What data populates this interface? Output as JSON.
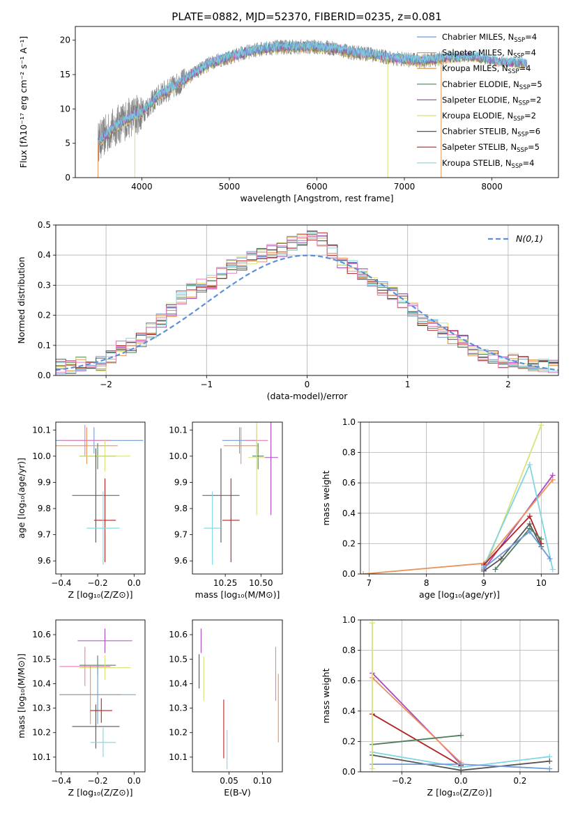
{
  "figure": {
    "title": "PLATE=0882, MJD=52370, FIBERID=0235, z=0.081"
  },
  "colors": {
    "chabrier_miles": "#6e9ad7",
    "salpeter_miles": "#e8945a",
    "kroupa_miles": "#d98a3a",
    "chabrier_elodie": "#4f7d5a",
    "salpeter_elodie": "#a84ac0",
    "kroupa_elodie": "#d8e27a",
    "chabrier_stelib": "#555555",
    "salpeter_stelib": "#b22222",
    "kroupa_stelib": "#7fd6e0",
    "data_spectrum": "#808080",
    "normal_curve": "#5b8fd9",
    "pink": "#e37fb6"
  },
  "chart_data": [
    {
      "id": "spectrum",
      "type": "line",
      "xlabel": "wavelength [Angstrom, rest frame]",
      "ylabel": "Flux [fλ10⁻¹⁷ erg cm⁻² s⁻¹ A⁻¹]",
      "xlim": [
        3240,
        8760
      ],
      "ylim": [
        0,
        22
      ],
      "xticks": [
        4000,
        5000,
        6000,
        7000,
        8000
      ],
      "yticks": [
        0,
        5,
        10,
        15,
        20
      ],
      "legend_position": "top-right",
      "legend": [
        {
          "label": "Chabrier MILES, N",
          "sub": "SSP",
          "tail": "=4",
          "color_key": "chabrier_miles"
        },
        {
          "label": "Salpeter MILES, N",
          "sub": "SSP",
          "tail": "=4",
          "color_key": "salpeter_miles"
        },
        {
          "label": "Kroupa MILES, N",
          "sub": "SSP",
          "tail": "=4",
          "color_key": "kroupa_miles"
        },
        {
          "label": "Chabrier ELODIE, N",
          "sub": "SSP",
          "tail": "=5",
          "color_key": "chabrier_elodie"
        },
        {
          "label": "Salpeter ELODIE, N",
          "sub": "SSP",
          "tail": "=2",
          "color_key": "salpeter_elodie"
        },
        {
          "label": "Kroupa ELODIE, N",
          "sub": "SSP",
          "tail": "=2",
          "color_key": "kroupa_elodie"
        },
        {
          "label": "Chabrier STELIB, N",
          "sub": "SSP",
          "tail": "=6",
          "color_key": "chabrier_stelib"
        },
        {
          "label": "Salpeter STELIB, N",
          "sub": "SSP",
          "tail": "=5",
          "color_key": "salpeter_stelib"
        },
        {
          "label": "Kroupa STELIB, N",
          "sub": "SSP",
          "tail": "=4",
          "color_key": "kroupa_stelib"
        }
      ],
      "model_envelope": {
        "wavelength": [
          3500,
          3700,
          3900,
          4000,
          4200,
          4400,
          4600,
          4800,
          5000,
          5200,
          5400,
          5600,
          5800,
          6000,
          6200,
          6400,
          6600,
          6800,
          7000,
          7200,
          7400,
          7600,
          7800,
          8000,
          8200,
          8400
        ],
        "flux": [
          5.2,
          7.5,
          9.0,
          9.5,
          12.0,
          13.5,
          15.2,
          16.8,
          17.5,
          18.3,
          18.8,
          19.0,
          19.0,
          19.0,
          18.8,
          18.2,
          18.0,
          17.5,
          17.2,
          17.0,
          17.3,
          17.5,
          17.6,
          17.0,
          16.8,
          16.5
        ]
      },
      "data_range": [
        3500,
        7450
      ]
    },
    {
      "id": "residuals",
      "type": "bar",
      "xlabel": "(data-model)/error",
      "ylabel": "Normed distribution",
      "xlim": [
        -2.5,
        2.5
      ],
      "ylim": [
        0,
        0.5
      ],
      "xticks": [
        -2,
        -1,
        0,
        1,
        2
      ],
      "yticks": [
        0.0,
        0.1,
        0.2,
        0.3,
        0.4,
        0.5
      ],
      "legend_position": "top-right",
      "legend_label": "N(0,1)",
      "bin_width": 0.1,
      "bin_start": -2.5,
      "histogram": [
        0.03,
        0.03,
        0.04,
        0.04,
        0.04,
        0.06,
        0.09,
        0.1,
        0.12,
        0.15,
        0.18,
        0.22,
        0.26,
        0.28,
        0.3,
        0.31,
        0.34,
        0.36,
        0.37,
        0.39,
        0.4,
        0.41,
        0.42,
        0.44,
        0.45,
        0.46,
        0.45,
        0.41,
        0.38,
        0.36,
        0.34,
        0.31,
        0.29,
        0.27,
        0.25,
        0.22,
        0.19,
        0.17,
        0.15,
        0.13,
        0.11,
        0.09,
        0.07,
        0.06,
        0.05,
        0.05,
        0.04,
        0.03,
        0.03,
        0.03
      ]
    },
    {
      "id": "z_age",
      "type": "scatter",
      "xlabel": "Z [log₁₀(Z/Z⊙)]",
      "ylabel": "age  [log₁₀(age/yr)]",
      "xlim": [
        -0.43,
        0.06
      ],
      "ylim": [
        9.55,
        10.13
      ],
      "xticks": [
        -0.4,
        -0.2,
        0.0
      ],
      "yticks": [
        9.6,
        9.7,
        9.8,
        9.9,
        10.0,
        10.1
      ],
      "points": [
        {
          "x": -0.22,
          "y": 10.06,
          "xerr": 0.27,
          "yerr": 0.05,
          "color_key": "chabrier_miles"
        },
        {
          "x": -0.26,
          "y": 10.04,
          "xerr": 0.17,
          "yerr": 0.07,
          "color_key": "salpeter_miles"
        },
        {
          "x": -0.27,
          "y": 10.06,
          "xerr": 0.14,
          "yerr": 0.06,
          "color_key": "pink"
        },
        {
          "x": -0.2,
          "y": 10.0,
          "xerr": 0.1,
          "yerr": 0.05,
          "color_key": "chabrier_elodie"
        },
        {
          "x": -0.16,
          "y": 10.0,
          "xerr": 0.14,
          "yerr": 0.06,
          "color_key": "kroupa_elodie"
        },
        {
          "x": -0.21,
          "y": 9.85,
          "xerr": 0.13,
          "yerr": 0.18,
          "color_key": "chabrier_stelib"
        },
        {
          "x": -0.16,
          "y": 9.755,
          "xerr": 0.06,
          "yerr": 0.16,
          "color_key": "salpeter_stelib"
        },
        {
          "x": -0.17,
          "y": 9.725,
          "xerr": 0.09,
          "yerr": 0.14,
          "color_key": "kroupa_stelib"
        }
      ]
    },
    {
      "id": "mass_age",
      "type": "scatter",
      "xlabel": "mass [log₁₀(M/M⊙)]",
      "ylabel": "",
      "xlim": [
        10.02,
        10.65
      ],
      "ylim": [
        9.55,
        10.13
      ],
      "xticks": [
        10.25,
        10.5
      ],
      "yticks": [
        9.6,
        9.7,
        9.8,
        9.9,
        10.0,
        10.1
      ],
      "points": [
        {
          "x": 10.35,
          "y": 10.06,
          "xerr": 0.12,
          "yerr": 0.05,
          "color_key": "chabrier_miles"
        },
        {
          "x": 10.36,
          "y": 10.04,
          "xerr": 0.12,
          "yerr": 0.07,
          "color_key": "salpeter_miles"
        },
        {
          "x": 10.47,
          "y": 10.06,
          "xerr": 0.08,
          "yerr": 0.06,
          "color_key": "pink"
        },
        {
          "x": 10.48,
          "y": 10.0,
          "xerr": 0.04,
          "yerr": 0.05,
          "color_key": "chabrier_elodie"
        },
        {
          "x": 10.57,
          "y": 9.995,
          "xerr": 0.05,
          "yerr": 0.22,
          "color_key": "salpeter_elodie"
        },
        {
          "x": 10.47,
          "y": 9.995,
          "xerr": 0.06,
          "yerr": 0.22,
          "color_key": "kroupa_elodie"
        },
        {
          "x": 10.22,
          "y": 9.85,
          "xerr": 0.13,
          "yerr": 0.18,
          "color_key": "chabrier_stelib"
        },
        {
          "x": 10.29,
          "y": 9.755,
          "xerr": 0.06,
          "yerr": 0.16,
          "color_key": "salpeter_stelib"
        },
        {
          "x": 10.16,
          "y": 9.725,
          "xerr": 0.06,
          "yerr": 0.14,
          "color_key": "kroupa_stelib"
        }
      ]
    },
    {
      "id": "age_weight",
      "type": "line",
      "xlabel": "age  [log₁₀(age/yr)]",
      "ylabel": "mass weight",
      "xlim": [
        6.85,
        10.3
      ],
      "ylim": [
        0,
        1.0
      ],
      "xticks": [
        7,
        8,
        9,
        10
      ],
      "yticks": [
        0.0,
        0.2,
        0.4,
        0.6,
        0.8,
        1.0
      ],
      "series": [
        {
          "color_key": "kroupa_elodie",
          "x": [
            9.0,
            10.0
          ],
          "y": [
            0.02,
            0.98
          ]
        },
        {
          "color_key": "salpeter_elodie",
          "x": [
            9.0,
            10.2
          ],
          "y": [
            0.03,
            0.65
          ]
        },
        {
          "color_key": "salpeter_miles",
          "x": [
            6.9,
            9.0,
            10.2
          ],
          "y": [
            0.0,
            0.07,
            0.62
          ]
        },
        {
          "color_key": "kroupa_stelib",
          "x": [
            9.0,
            9.8,
            10.2
          ],
          "y": [
            0.05,
            0.72,
            0.03
          ]
        },
        {
          "color_key": "salpeter_stelib",
          "x": [
            9.0,
            9.8,
            10.0
          ],
          "y": [
            0.06,
            0.38,
            0.2
          ]
        },
        {
          "color_key": "chabrier_stelib",
          "x": [
            9.0,
            9.3,
            9.8,
            10.0
          ],
          "y": [
            0.02,
            0.1,
            0.33,
            0.18
          ]
        },
        {
          "color_key": "chabrier_elodie",
          "x": [
            9.2,
            9.8,
            10.0
          ],
          "y": [
            0.03,
            0.3,
            0.23
          ]
        },
        {
          "color_key": "chabrier_miles",
          "x": [
            9.0,
            9.8,
            10.15
          ],
          "y": [
            0.04,
            0.28,
            0.1
          ]
        }
      ]
    },
    {
      "id": "z_mass",
      "type": "scatter",
      "xlabel": "Z [log₁₀(Z/Z⊙)]",
      "ylabel": "mass [log₁₀(M/M⊙)]",
      "xlim": [
        -0.43,
        0.06
      ],
      "ylim": [
        10.04,
        10.66
      ],
      "xticks": [
        -0.4,
        -0.2,
        0.0
      ],
      "yticks": [
        10.1,
        10.2,
        10.3,
        10.4,
        10.5,
        10.6
      ],
      "points": [
        {
          "x": -0.16,
          "y": 10.575,
          "xerr": 0.15,
          "yerr": 0.05,
          "color_key": "salpeter_elodie"
        },
        {
          "x": -0.27,
          "y": 10.47,
          "xerr": 0.14,
          "yerr": 0.08,
          "color_key": "pink"
        },
        {
          "x": -0.2,
          "y": 10.475,
          "xerr": 0.1,
          "yerr": 0.04,
          "color_key": "chabrier_elodie"
        },
        {
          "x": -0.16,
          "y": 10.465,
          "xerr": 0.14,
          "yerr": 0.05,
          "color_key": "kroupa_elodie"
        },
        {
          "x": -0.24,
          "y": 10.355,
          "xerr": 0.17,
          "yerr": 0.12,
          "color_key": "salpeter_miles"
        },
        {
          "x": -0.2,
          "y": 10.355,
          "xerr": 0.21,
          "yerr": 0.12,
          "color_key": "chabrier_miles"
        },
        {
          "x": -0.18,
          "y": 10.29,
          "xerr": 0.06,
          "yerr": 0.05,
          "color_key": "salpeter_stelib"
        },
        {
          "x": -0.21,
          "y": 10.225,
          "xerr": 0.13,
          "yerr": 0.09,
          "color_key": "chabrier_stelib"
        },
        {
          "x": -0.17,
          "y": 10.16,
          "xerr": 0.07,
          "yerr": 0.06,
          "color_key": "kroupa_stelib"
        }
      ]
    },
    {
      "id": "ebv_mass",
      "type": "scatter",
      "xlabel": "E(B-V)",
      "ylabel": "",
      "xlim": [
        -0.005,
        0.13
      ],
      "ylim": [
        10.04,
        10.66
      ],
      "xticks": [
        0.05,
        0.1
      ],
      "yticks": [
        10.1,
        10.2,
        10.3,
        10.4,
        10.5,
        10.6
      ],
      "points": [
        {
          "x": 0.008,
          "y": 10.575,
          "yerr": 0.05,
          "color_key": "salpeter_elodie"
        },
        {
          "x": 0.005,
          "y": 10.45,
          "yerr": 0.07,
          "color_key": "chabrier_stelib"
        },
        {
          "x": 0.012,
          "y": 10.42,
          "yerr": 0.09,
          "color_key": "kroupa_elodie"
        },
        {
          "x": 0.042,
          "y": 10.215,
          "yerr": 0.12,
          "color_key": "salpeter_stelib"
        },
        {
          "x": 0.047,
          "y": 10.13,
          "yerr": 0.08,
          "color_key": "kroupa_stelib"
        },
        {
          "x": 0.12,
          "y": 10.44,
          "yerr": 0.11,
          "color_key": "pink"
        },
        {
          "x": 0.124,
          "y": 10.3,
          "yerr": 0.14,
          "color_key": "salpeter_miles"
        }
      ]
    },
    {
      "id": "z_weight",
      "type": "line",
      "xlabel": "Z [log₁₀(Z/Z⊙)]",
      "ylabel": "mass weight",
      "xlim": [
        -0.34,
        0.33
      ],
      "ylim": [
        0,
        1.0
      ],
      "xticks": [
        -0.2,
        0.0,
        0.2
      ],
      "yticks": [
        0.0,
        0.2,
        0.4,
        0.6,
        0.8,
        1.0
      ],
      "series": [
        {
          "color_key": "salpeter_elodie",
          "x": [
            -0.3,
            0.0
          ],
          "y": [
            0.65,
            0.05
          ]
        },
        {
          "color_key": "salpeter_miles",
          "x": [
            -0.3,
            0.0
          ],
          "y": [
            0.62,
            0.06
          ]
        },
        {
          "color_key": "salpeter_stelib",
          "x": [
            -0.3,
            0.0
          ],
          "y": [
            0.38,
            0.04
          ]
        },
        {
          "color_key": "chabrier_elodie",
          "x": [
            -0.3,
            0.0
          ],
          "y": [
            0.18,
            0.24
          ]
        },
        {
          "color_key": "kroupa_stelib",
          "x": [
            -0.3,
            0.0,
            0.3
          ],
          "y": [
            0.13,
            0.03,
            0.1
          ]
        },
        {
          "color_key": "chabrier_stelib",
          "x": [
            -0.3,
            0.0,
            0.3
          ],
          "y": [
            0.11,
            0.01,
            0.07
          ]
        },
        {
          "color_key": "chabrier_miles",
          "x": [
            -0.3,
            0.0,
            0.3
          ],
          "y": [
            0.05,
            0.05,
            0.02
          ]
        },
        {
          "color_key": "kroupa_elodie",
          "x": [
            -0.3,
            -0.3
          ],
          "y": [
            0.02,
            0.98
          ]
        }
      ]
    }
  ]
}
